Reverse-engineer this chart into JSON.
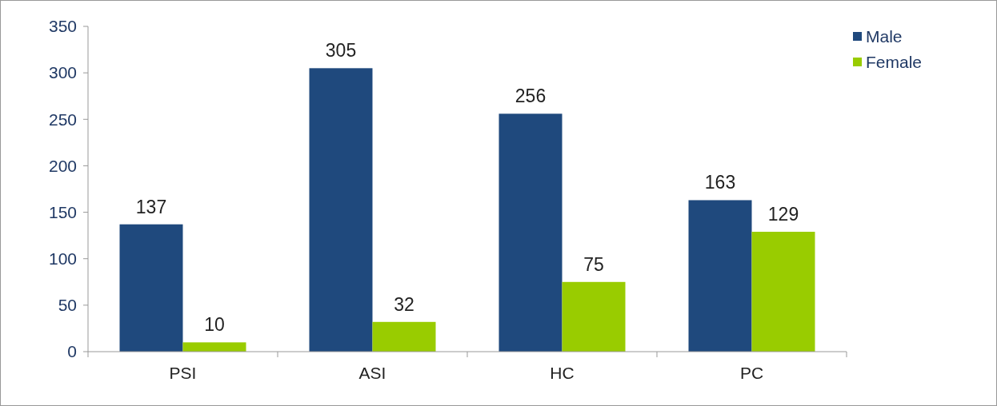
{
  "chart_data": {
    "type": "bar",
    "categories": [
      "PSI",
      "ASI",
      "HC",
      "PC"
    ],
    "series": [
      {
        "name": "Male",
        "color": "#1f497d",
        "values": [
          137,
          305,
          256,
          163
        ]
      },
      {
        "name": "Female",
        "color": "#99cc00",
        "values": [
          10,
          32,
          75,
          129
        ]
      }
    ],
    "ylim": [
      0,
      350
    ],
    "yticks": [
      0,
      50,
      100,
      150,
      200,
      250,
      300,
      350
    ],
    "grid": false,
    "legend": "top right",
    "data_labels": true
  }
}
